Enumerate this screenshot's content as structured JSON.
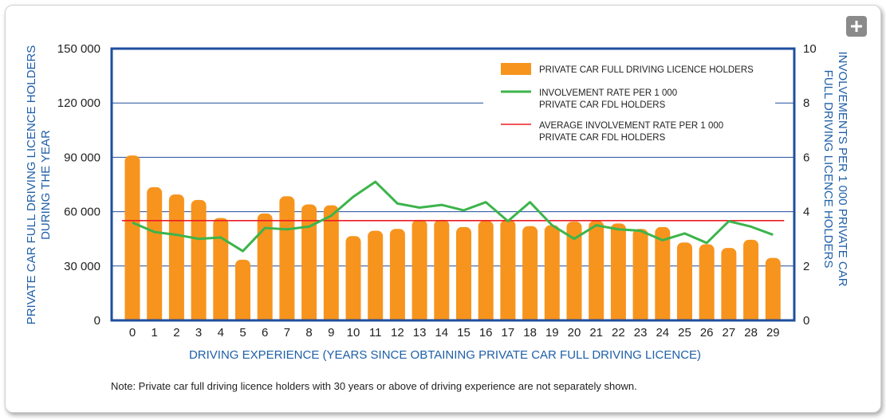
{
  "chart_data": {
    "type": "bar",
    "categories": [
      "0",
      "1",
      "2",
      "3",
      "4",
      "5",
      "6",
      "7",
      "8",
      "9",
      "10",
      "11",
      "12",
      "13",
      "14",
      "15",
      "16",
      "17",
      "18",
      "19",
      "20",
      "21",
      "22",
      "23",
      "24",
      "25",
      "26",
      "27",
      "28",
      "29"
    ],
    "series": [
      {
        "name": "PRIVATE CAR FULL DRIVING LICENCE HOLDERS",
        "type": "bar",
        "axis": "left",
        "color": "#f7941d",
        "values": [
          91000,
          73500,
          69500,
          66500,
          56500,
          33500,
          59000,
          68500,
          64000,
          63500,
          46500,
          49500,
          50500,
          55500,
          55500,
          51500,
          55000,
          55500,
          52000,
          52500,
          54500,
          55000,
          53500,
          50500,
          51500,
          43000,
          42000,
          40000,
          44500,
          34500
        ]
      },
      {
        "name": "INVOLVEMENT RATE PER 1 000 PRIVATE CAR FDL HOLDERS",
        "type": "line",
        "axis": "right",
        "color": "#3cb44b",
        "values": [
          3.6,
          3.25,
          3.15,
          3.0,
          3.05,
          2.55,
          3.4,
          3.35,
          3.45,
          3.85,
          4.55,
          5.1,
          4.3,
          4.15,
          4.25,
          4.05,
          4.35,
          3.65,
          4.35,
          3.5,
          3.0,
          3.5,
          3.35,
          3.3,
          2.95,
          3.2,
          2.85,
          3.65,
          3.45,
          3.15
        ]
      },
      {
        "name": "AVERAGE INVOLVEMENT RATE PER 1 000 PRIVATE CAR FDL HOLDERS",
        "type": "hline",
        "axis": "right",
        "color": "#ee1c25",
        "value": 3.67
      }
    ],
    "legend_lines": [
      [
        "PRIVATE CAR FULL DRIVING LICENCE HOLDERS"
      ],
      [
        "INVOLVEMENT RATE PER 1 000",
        "PRIVATE CAR FDL HOLDERS"
      ],
      [
        "AVERAGE INVOLVEMENT RATE PER 1 000",
        "PRIVATE CAR FDL HOLDERS"
      ]
    ],
    "legend_position": "top-right",
    "xlabel": "DRIVING EXPERIENCE (YEARS SINCE OBTAINING PRIVATE CAR FULL DRIVING LICENCE)",
    "ylabel_left": [
      "PRIVATE CAR FULL DRIVING LICENCE HOLDERS",
      "DURING THE YEAR"
    ],
    "ylabel_right": [
      "INVOLVEMENTS PER 1 000 PRIVATE CAR",
      "FULL DRIVING LICENCE HOLDERS"
    ],
    "ylim_left": [
      0,
      150000
    ],
    "ylim_right": [
      0,
      10
    ],
    "yticks_left": [
      0,
      30000,
      60000,
      90000,
      120000,
      150000
    ],
    "yticks_left_labels": [
      "0",
      "30 000",
      "60 000",
      "90 000",
      "120 000",
      "150 000"
    ],
    "yticks_right": [
      0,
      2,
      4,
      6,
      8,
      10
    ],
    "yticks_right_labels": [
      "0",
      "2",
      "4",
      "6",
      "8",
      "10"
    ],
    "grid": "horizontal",
    "colors": {
      "frame": "#1f4e9c",
      "grid": "#1f4e9c",
      "axis_text": "#1f5fa8"
    }
  },
  "note": "Note: Private car full driving licence holders with 30 years or above of driving experience are not separately shown.",
  "toolbar": {
    "expand_icon": "plus-icon"
  }
}
